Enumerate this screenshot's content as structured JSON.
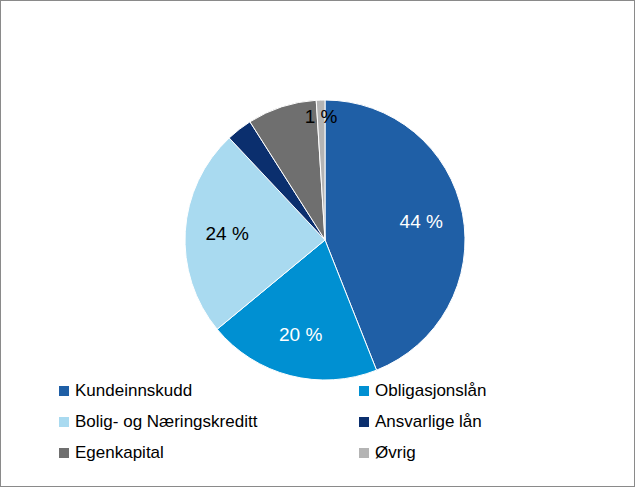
{
  "chart_data": {
    "type": "pie",
    "categories": [
      "Kundeinnskudd",
      "Obligasjonslån",
      "Bolig- og Næringskreditt",
      "Ansvarlige lån",
      "Egenkapital",
      "Øvrig"
    ],
    "values": [
      44,
      20,
      24,
      3,
      8,
      1
    ],
    "value_labels": [
      "44 %",
      "20 %",
      "24 %",
      null,
      null,
      "1 %"
    ],
    "data_labels": true,
    "colors": [
      "#1F5FA6",
      "#0090D2",
      "#A9DAF0",
      "#0B2F6E",
      "#6F6F6F",
      "#B4B4B4"
    ],
    "legend": "bottom"
  }
}
